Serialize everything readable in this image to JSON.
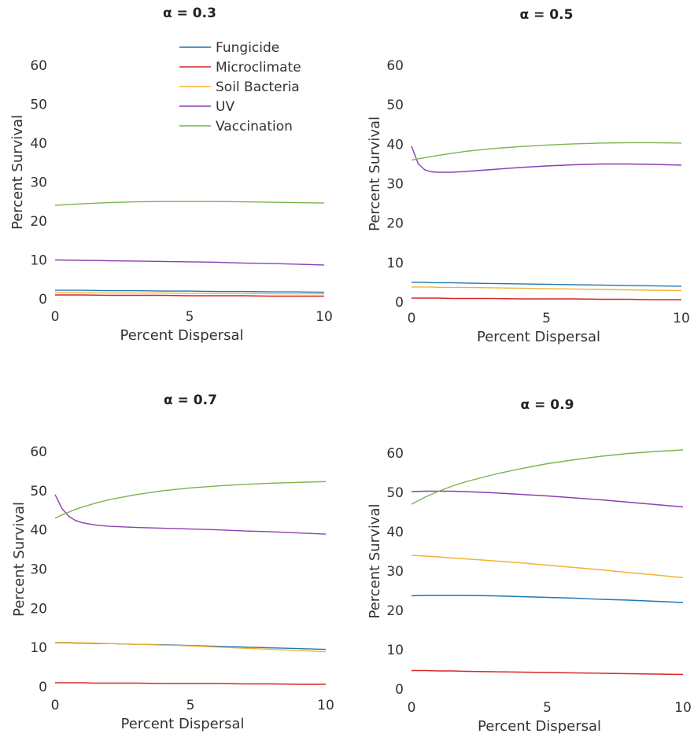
{
  "chart_data": [
    {
      "type": "line",
      "title": "α = 0.3",
      "xlabel": "Percent Dispersal",
      "ylabel": "Percent Survival",
      "xlim": [
        0,
        10
      ],
      "ylim": [
        0,
        65
      ],
      "xticks": [
        "0",
        "5",
        "10"
      ],
      "yticks": [
        "0",
        "10",
        "20",
        "30",
        "40",
        "50",
        "60"
      ],
      "x": [
        0,
        1,
        2,
        3,
        4,
        5,
        6,
        7,
        8,
        9,
        10
      ],
      "legend": "top-center",
      "series": [
        {
          "name": "Fungicide",
          "color": "#1f77b4",
          "values": [
            2.2,
            2.2,
            2.1,
            2.1,
            2.0,
            2.0,
            1.9,
            1.9,
            1.8,
            1.8,
            1.7
          ]
        },
        {
          "name": "Microclimate",
          "color": "#d62728",
          "values": [
            1.0,
            1.0,
            0.9,
            0.9,
            0.9,
            0.8,
            0.8,
            0.8,
            0.7,
            0.7,
            0.7
          ]
        },
        {
          "name": "Soil Bacteria",
          "color": "#f2b233",
          "values": [
            1.6,
            1.6,
            1.5,
            1.5,
            1.5,
            1.4,
            1.4,
            1.4,
            1.3,
            1.3,
            1.3
          ]
        },
        {
          "name": "UV",
          "color": "#8a3fb0",
          "values": [
            10.0,
            9.9,
            9.8,
            9.7,
            9.6,
            9.5,
            9.4,
            9.2,
            9.1,
            8.9,
            8.7
          ]
        },
        {
          "name": "Vaccination",
          "color": "#7cb34e",
          "values": [
            24.0,
            24.4,
            24.7,
            24.9,
            25.0,
            25.0,
            25.0,
            24.9,
            24.8,
            24.7,
            24.6
          ]
        }
      ]
    },
    {
      "type": "line",
      "title": "α = 0.5",
      "xlabel": "Percent Dispersal",
      "ylabel": "Percent Survival",
      "xlim": [
        0,
        10
      ],
      "ylim": [
        0,
        65
      ],
      "xticks": [
        "0",
        "5",
        "10"
      ],
      "yticks": [
        "0",
        "10",
        "20",
        "30",
        "40",
        "50",
        "60"
      ],
      "x": [
        0,
        0.25,
        0.5,
        0.75,
        1,
        1.5,
        2,
        3,
        4,
        5,
        6,
        7,
        8,
        9,
        10
      ],
      "series": [
        {
          "name": "Fungicide",
          "color": "#1f77b4",
          "values": [
            5.0,
            5.0,
            5.0,
            4.9,
            4.9,
            4.9,
            4.8,
            4.7,
            4.6,
            4.5,
            4.4,
            4.3,
            4.2,
            4.1,
            4.0
          ]
        },
        {
          "name": "Microclimate",
          "color": "#d62728",
          "values": [
            1.0,
            1.0,
            1.0,
            1.0,
            1.0,
            0.9,
            0.9,
            0.9,
            0.8,
            0.8,
            0.8,
            0.7,
            0.7,
            0.6,
            0.6
          ]
        },
        {
          "name": "Soil Bacteria",
          "color": "#f2b233",
          "values": [
            3.8,
            3.8,
            3.8,
            3.8,
            3.7,
            3.7,
            3.7,
            3.6,
            3.5,
            3.4,
            3.3,
            3.2,
            3.1,
            3.0,
            2.9
          ]
        },
        {
          "name": "UV",
          "color": "#8a3fb0",
          "values": [
            39.5,
            35.0,
            33.5,
            33.0,
            32.9,
            32.9,
            33.1,
            33.6,
            34.1,
            34.5,
            34.8,
            35.0,
            35.0,
            34.9,
            34.7
          ]
        },
        {
          "name": "Vaccination",
          "color": "#7cb34e",
          "values": [
            36.0,
            36.3,
            36.6,
            36.9,
            37.2,
            37.7,
            38.2,
            38.9,
            39.4,
            39.8,
            40.1,
            40.3,
            40.4,
            40.4,
            40.3
          ]
        }
      ]
    },
    {
      "type": "line",
      "title": "α = 0.7",
      "xlabel": "Percent Dispersal",
      "ylabel": "Percent Survival",
      "xlim": [
        0,
        10
      ],
      "ylim": [
        0,
        65
      ],
      "xticks": [
        "0",
        "5",
        "10"
      ],
      "yticks": [
        "0",
        "10",
        "20",
        "30",
        "40",
        "50",
        "60"
      ],
      "x": [
        0,
        0.25,
        0.5,
        0.75,
        1,
        1.5,
        2,
        3,
        4,
        5,
        6,
        7,
        8,
        9,
        10
      ],
      "series": [
        {
          "name": "Fungicide",
          "color": "#1f77b4",
          "values": [
            11.2,
            11.2,
            11.2,
            11.1,
            11.1,
            11.0,
            11.0,
            10.8,
            10.7,
            10.5,
            10.3,
            10.1,
            9.9,
            9.7,
            9.5
          ]
        },
        {
          "name": "Microclimate",
          "color": "#d62728",
          "values": [
            1.0,
            1.0,
            1.0,
            1.0,
            1.0,
            0.9,
            0.9,
            0.9,
            0.8,
            0.8,
            0.8,
            0.7,
            0.7,
            0.6,
            0.6
          ]
        },
        {
          "name": "Soil Bacteria",
          "color": "#f2b233",
          "values": [
            11.3,
            11.3,
            11.3,
            11.2,
            11.2,
            11.1,
            11.0,
            10.8,
            10.6,
            10.4,
            10.1,
            9.8,
            9.5,
            9.2,
            8.9
          ]
        },
        {
          "name": "UV",
          "color": "#8a3fb0",
          "values": [
            49.0,
            45.5,
            43.5,
            42.4,
            41.8,
            41.2,
            40.9,
            40.6,
            40.4,
            40.2,
            40.0,
            39.7,
            39.5,
            39.2,
            38.9
          ]
        },
        {
          "name": "Vaccination",
          "color": "#7cb34e",
          "values": [
            43.0,
            43.8,
            44.5,
            45.2,
            45.8,
            46.8,
            47.7,
            49.0,
            50.0,
            50.7,
            51.2,
            51.6,
            51.9,
            52.1,
            52.3
          ]
        }
      ]
    },
    {
      "type": "line",
      "title": "α = 0.9",
      "xlabel": "Percent Dispersal",
      "ylabel": "Percent Survival",
      "xlim": [
        0,
        10
      ],
      "ylim": [
        0,
        65
      ],
      "xticks": [
        "0",
        "5",
        "10"
      ],
      "yticks": [
        "0",
        "10",
        "20",
        "30",
        "40",
        "50",
        "60"
      ],
      "x": [
        0,
        0.5,
        1,
        1.5,
        2,
        3,
        4,
        5,
        6,
        7,
        8,
        9,
        10
      ],
      "series": [
        {
          "name": "Fungicide",
          "color": "#1f77b4",
          "values": [
            23.7,
            23.8,
            23.8,
            23.8,
            23.8,
            23.7,
            23.5,
            23.3,
            23.1,
            22.8,
            22.6,
            22.3,
            22.0
          ]
        },
        {
          "name": "Microclimate",
          "color": "#d62728",
          "values": [
            4.7,
            4.7,
            4.6,
            4.6,
            4.5,
            4.4,
            4.3,
            4.2,
            4.1,
            4.0,
            3.9,
            3.8,
            3.7
          ]
        },
        {
          "name": "Soil Bacteria",
          "color": "#f2b233",
          "values": [
            34.0,
            33.8,
            33.6,
            33.3,
            33.1,
            32.6,
            32.1,
            31.5,
            30.9,
            30.3,
            29.6,
            29.0,
            28.3
          ]
        },
        {
          "name": "UV",
          "color": "#8a3fb0",
          "values": [
            50.2,
            50.3,
            50.3,
            50.3,
            50.2,
            49.9,
            49.5,
            49.1,
            48.6,
            48.1,
            47.5,
            46.9,
            46.3
          ]
        },
        {
          "name": "Vaccination",
          "color": "#7cb34e",
          "values": [
            47.0,
            48.8,
            50.3,
            51.6,
            52.7,
            54.5,
            56.0,
            57.3,
            58.3,
            59.2,
            59.9,
            60.4,
            60.8
          ]
        }
      ]
    }
  ]
}
